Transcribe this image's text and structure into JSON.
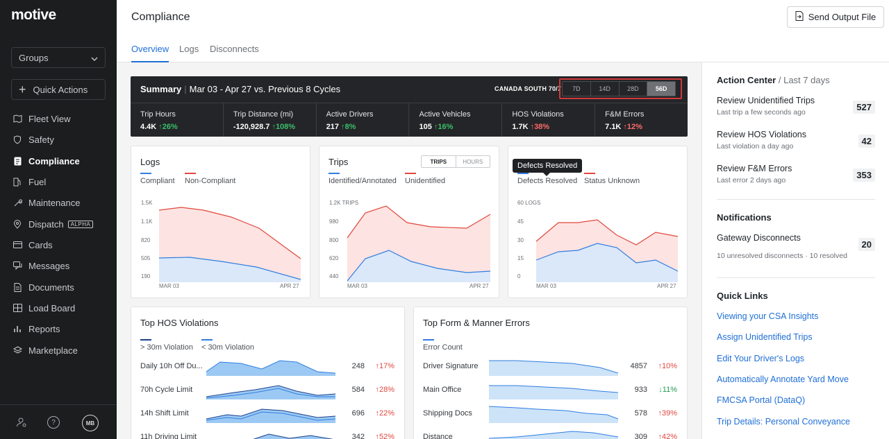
{
  "sidebar": {
    "logo": "motive",
    "groups_label": "Groups",
    "quick_actions_label": "Quick Actions",
    "items": [
      {
        "label": "Fleet View",
        "icon": "map-icon"
      },
      {
        "label": "Safety",
        "icon": "shield-icon"
      },
      {
        "label": "Compliance",
        "icon": "document-icon",
        "active": true
      },
      {
        "label": "Fuel",
        "icon": "fuel-icon"
      },
      {
        "label": "Maintenance",
        "icon": "wrench-icon"
      },
      {
        "label": "Dispatch",
        "icon": "location-pin-icon",
        "badge": "ALPHA"
      },
      {
        "label": "Cards",
        "icon": "card-icon"
      },
      {
        "label": "Messages",
        "icon": "chat-icon"
      },
      {
        "label": "Documents",
        "icon": "file-icon"
      },
      {
        "label": "Load Board",
        "icon": "truck-icon"
      },
      {
        "label": "Reports",
        "icon": "bar-chart-icon"
      },
      {
        "label": "Marketplace",
        "icon": "layers-icon"
      }
    ],
    "avatar_initials": "MB"
  },
  "header": {
    "title": "Compliance",
    "send_button": "Send Output File",
    "tabs": [
      {
        "label": "Overview",
        "active": true
      },
      {
        "label": "Logs"
      },
      {
        "label": "Disconnects"
      }
    ]
  },
  "summary": {
    "title": "Summary",
    "range": "Mar 03 - Apr 27 vs. Previous 8 Cycles",
    "region": "CANADA SOUTH 70/7",
    "periods": [
      "7D",
      "14D",
      "28D",
      "56D"
    ],
    "selected_period": "56D",
    "kpis": [
      {
        "label": "Trip Hours",
        "value": "4.4K",
        "delta": "↑26%",
        "trend": "good"
      },
      {
        "label": "Trip Distance (mi)",
        "value": "-120,928.7",
        "delta": "↑108%",
        "trend": "good"
      },
      {
        "label": "Active Drivers",
        "value": "217",
        "delta": "↑8%",
        "trend": "good"
      },
      {
        "label": "Active Vehicles",
        "value": "105",
        "delta": "↑16%",
        "trend": "good"
      },
      {
        "label": "HOS Violations",
        "value": "1.7K",
        "delta": "↑38%",
        "trend": "bad"
      },
      {
        "label": "F&M Errors",
        "value": "7.1K",
        "delta": "↑12%",
        "trend": "bad"
      }
    ]
  },
  "logs_card": {
    "title": "Logs",
    "legend": [
      "Compliant",
      "Non-Compliant"
    ],
    "yticks": [
      "1.5K",
      "1.1K",
      "820",
      "505",
      "190"
    ],
    "xticks": [
      "MAR 03",
      "APR 27"
    ]
  },
  "trips_card": {
    "title": "Trips",
    "toggle": [
      "TRIPS",
      "HOURS"
    ],
    "legend": [
      "Identified/Annotated",
      "Unidentified"
    ],
    "yticks": [
      "1.2K TRIPS",
      "980",
      "800",
      "620",
      "440"
    ],
    "xticks": [
      "MAR 03",
      "APR 27"
    ]
  },
  "defects_card": {
    "tooltip": "Defects Resolved",
    "legend": [
      "Defects Resolved",
      "Status Unknown"
    ],
    "yticks": [
      "60 LOGS",
      "45",
      "30",
      "15",
      "0"
    ],
    "xticks": [
      "MAR 03",
      "APR 27"
    ]
  },
  "hos_card": {
    "title": "Top HOS Violations",
    "legend": [
      "> 30m Violation",
      "< 30m Violation"
    ],
    "rows": [
      {
        "label": "Daily 10h Off Du...",
        "value": "248",
        "delta": "↑17%"
      },
      {
        "label": "70h Cycle Limit",
        "value": "584",
        "delta": "↑28%"
      },
      {
        "label": "14h Shift Limit",
        "value": "696",
        "delta": "↑22%"
      },
      {
        "label": "11h Driving Limit",
        "value": "342",
        "delta": "↑52%"
      }
    ]
  },
  "fm_card": {
    "title": "Top Form & Manner Errors",
    "legend": [
      "Error Count"
    ],
    "rows": [
      {
        "label": "Driver Signature",
        "value": "4857",
        "delta": "↑10%",
        "trend": "bad"
      },
      {
        "label": "Main Office",
        "value": "933",
        "delta": "↓11%",
        "trend": "good"
      },
      {
        "label": "Shipping Docs",
        "value": "578",
        "delta": "↑39%",
        "trend": "bad"
      },
      {
        "label": "Distance",
        "value": "309",
        "delta": "↑42%",
        "trend": "bad"
      }
    ]
  },
  "right": {
    "action_center": "Action Center",
    "action_center_sub": "/ Last 7 days",
    "actions": [
      {
        "title": "Review Unidentified Trips",
        "sub": "Last trip a few seconds ago",
        "count": "527"
      },
      {
        "title": "Review HOS Violations",
        "sub": "Last violation a day ago",
        "count": "42"
      },
      {
        "title": "Review F&M Errors",
        "sub": "Last error 2 days ago",
        "count": "353"
      }
    ],
    "notifications": "Notifications",
    "notif_title": "Gateway Disconnects",
    "notif_sub": "10 unresolved disconnects · 10 resolved",
    "notif_count": "20",
    "quick_links": "Quick Links",
    "links": [
      "Viewing your CSA Insights",
      "Assign Unidentified Trips",
      "Edit Your Driver's Logs",
      "Automatically Annotate Yard Move",
      "FMCSA Portal (DataQ)",
      "Trip Details: Personal Conveyance"
    ]
  },
  "colors": {
    "accent": "#1f6fd6",
    "compliant": "#2f7de1",
    "noncompliant": "#e0473e",
    "good": "#39c06b",
    "bad": "#ff6b6b"
  }
}
